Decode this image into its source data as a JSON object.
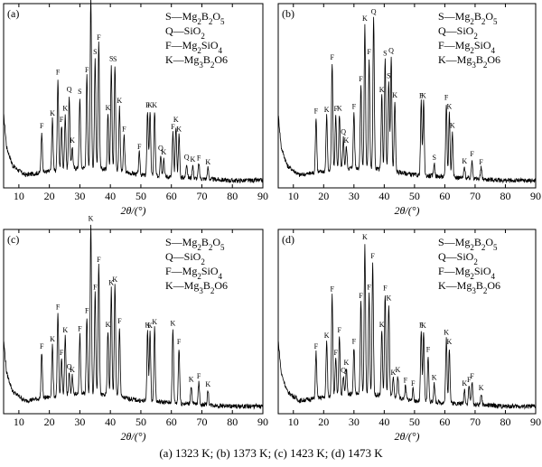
{
  "caption": "(a) 1323 K; (b) 1373 K; (c) 1423 K; (d)  1473 K",
  "chart_data": [
    {
      "type": "line",
      "panel_label": "(a)",
      "xlabel": "2θ/(°)",
      "ylabel": "",
      "xlim": [
        5,
        90
      ],
      "xticks": [
        "10",
        "20",
        "30",
        "40",
        "50",
        "60",
        "70",
        "80",
        "90"
      ],
      "legend": [
        {
          "code": "S",
          "phase": "Mg₂B₂O₅"
        },
        {
          "code": "Q",
          "phase": "SiO₂"
        },
        {
          "code": "F",
          "phase": "Mg₂SiO₄"
        },
        {
          "code": "K",
          "phase": "Mg₃B₂O6"
        }
      ],
      "legend_position": "top-right",
      "baseline": [
        [
          5,
          0.4
        ],
        [
          6,
          0.22
        ],
        [
          8,
          0.12
        ],
        [
          12,
          0.07
        ],
        [
          20,
          0.09
        ],
        [
          30,
          0.11
        ],
        [
          40,
          0.1
        ],
        [
          50,
          0.07
        ],
        [
          60,
          0.06
        ],
        [
          70,
          0.05
        ],
        [
          80,
          0.04
        ],
        [
          90,
          0.04
        ]
      ],
      "peaks": [
        {
          "x": 17.5,
          "h": 0.22,
          "label": "F"
        },
        {
          "x": 21.0,
          "h": 0.28,
          "label": "K"
        },
        {
          "x": 22.8,
          "h": 0.5,
          "label": "F"
        },
        {
          "x": 24.0,
          "h": 0.24,
          "label": "F"
        },
        {
          "x": 25.2,
          "h": 0.3,
          "label": "K"
        },
        {
          "x": 26.5,
          "h": 0.4,
          "label": "Q"
        },
        {
          "x": 27.5,
          "h": 0.12,
          "label": "K"
        },
        {
          "x": 30.0,
          "h": 0.38,
          "label": "S"
        },
        {
          "x": 32.3,
          "h": 0.5,
          "label": "F"
        },
        {
          "x": 33.6,
          "h": 0.92,
          "label": "K"
        },
        {
          "x": 35.0,
          "h": 0.6,
          "label": "S"
        },
        {
          "x": 36.2,
          "h": 0.68,
          "label": "F"
        },
        {
          "x": 39.2,
          "h": 0.3,
          "label": "K"
        },
        {
          "x": 40.3,
          "h": 0.57,
          "label": "S"
        },
        {
          "x": 41.5,
          "h": 0.57,
          "label": "S"
        },
        {
          "x": 43.0,
          "h": 0.35,
          "label": "K"
        },
        {
          "x": 44.5,
          "h": 0.2,
          "label": "F"
        },
        {
          "x": 49.5,
          "h": 0.12,
          "label": "F"
        },
        {
          "x": 52.2,
          "h": 0.35,
          "label": "F"
        },
        {
          "x": 53.0,
          "h": 0.35,
          "label": "K"
        },
        {
          "x": 54.5,
          "h": 0.35,
          "label": "K"
        },
        {
          "x": 56.5,
          "h": 0.12,
          "label": "Q"
        },
        {
          "x": 57.5,
          "h": 0.1,
          "label": "K"
        },
        {
          "x": 60.5,
          "h": 0.24,
          "label": "F"
        },
        {
          "x": 61.5,
          "h": 0.28,
          "label": "K"
        },
        {
          "x": 62.5,
          "h": 0.23,
          "label": "K"
        },
        {
          "x": 65.0,
          "h": 0.08,
          "label": "Q"
        },
        {
          "x": 67.0,
          "h": 0.07,
          "label": "K"
        },
        {
          "x": 69.0,
          "h": 0.08,
          "label": "F"
        },
        {
          "x": 72.0,
          "h": 0.06,
          "label": "K"
        }
      ]
    },
    {
      "type": "line",
      "panel_label": "(b)",
      "xlabel": "2θ/(°)",
      "ylabel": "",
      "xlim": [
        5,
        90
      ],
      "xticks": [
        "10",
        "20",
        "30",
        "40",
        "50",
        "60",
        "70",
        "80",
        "90"
      ],
      "legend": [
        {
          "code": "S",
          "phase": "Mg₂B₂O₅"
        },
        {
          "code": "Q",
          "phase": "SiO₂"
        },
        {
          "code": "F",
          "phase": "Mg₂SiO₄"
        },
        {
          "code": "K",
          "phase": "Mg₃B₂O6"
        }
      ],
      "legend_position": "top-right",
      "baseline": [
        [
          5,
          0.4
        ],
        [
          6,
          0.22
        ],
        [
          8,
          0.12
        ],
        [
          12,
          0.07
        ],
        [
          20,
          0.09
        ],
        [
          30,
          0.11
        ],
        [
          40,
          0.1
        ],
        [
          50,
          0.07
        ],
        [
          60,
          0.06
        ],
        [
          70,
          0.05
        ],
        [
          80,
          0.04
        ],
        [
          90,
          0.04
        ]
      ],
      "peaks": [
        {
          "x": 17.5,
          "h": 0.3,
          "label": "F"
        },
        {
          "x": 21.0,
          "h": 0.3,
          "label": "K"
        },
        {
          "x": 22.8,
          "h": 0.58,
          "label": "F"
        },
        {
          "x": 24.0,
          "h": 0.3,
          "label": "F"
        },
        {
          "x": 25.2,
          "h": 0.3,
          "label": "K"
        },
        {
          "x": 26.5,
          "h": 0.17,
          "label": "Q"
        },
        {
          "x": 27.5,
          "h": 0.12,
          "label": "K"
        },
        {
          "x": 30.0,
          "h": 0.3,
          "label": "F"
        },
        {
          "x": 32.3,
          "h": 0.45,
          "label": "F"
        },
        {
          "x": 33.6,
          "h": 0.78,
          "label": "K"
        },
        {
          "x": 35.0,
          "h": 0.6,
          "label": "F"
        },
        {
          "x": 36.5,
          "h": 0.82,
          "label": "Q"
        },
        {
          "x": 39.2,
          "h": 0.4,
          "label": "K"
        },
        {
          "x": 40.3,
          "h": 0.6,
          "label": "S"
        },
        {
          "x": 41.5,
          "h": 0.48,
          "label": "S"
        },
        {
          "x": 42.3,
          "h": 0.62,
          "label": "Q"
        },
        {
          "x": 43.5,
          "h": 0.38,
          "label": "K"
        },
        {
          "x": 52.2,
          "h": 0.4,
          "label": "F"
        },
        {
          "x": 53.0,
          "h": 0.4,
          "label": "K"
        },
        {
          "x": 56.5,
          "h": 0.07,
          "label": "S"
        },
        {
          "x": 60.5,
          "h": 0.4,
          "label": "F"
        },
        {
          "x": 61.5,
          "h": 0.35,
          "label": "K"
        },
        {
          "x": 62.5,
          "h": 0.25,
          "label": "K"
        },
        {
          "x": 66.5,
          "h": 0.06,
          "label": "K"
        },
        {
          "x": 69.0,
          "h": 0.1,
          "label": "F"
        },
        {
          "x": 72.0,
          "h": 0.06,
          "label": "F"
        }
      ]
    },
    {
      "type": "line",
      "panel_label": "(c)",
      "xlabel": "2θ/(°)",
      "ylabel": "",
      "xlim": [
        5,
        90
      ],
      "xticks": [
        "10",
        "20",
        "30",
        "40",
        "50",
        "60",
        "70",
        "80",
        "90"
      ],
      "legend": [
        {
          "code": "S",
          "phase": "Mg₂B₂O₅"
        },
        {
          "code": "Q",
          "phase": "SiO₂"
        },
        {
          "code": "F",
          "phase": "Mg₂SiO₄"
        },
        {
          "code": "K",
          "phase": "Mg₃B₂O6"
        }
      ],
      "legend_position": "top-right",
      "baseline": [
        [
          5,
          0.4
        ],
        [
          6,
          0.22
        ],
        [
          8,
          0.12
        ],
        [
          12,
          0.07
        ],
        [
          20,
          0.09
        ],
        [
          30,
          0.11
        ],
        [
          40,
          0.1
        ],
        [
          50,
          0.07
        ],
        [
          60,
          0.06
        ],
        [
          70,
          0.05
        ],
        [
          80,
          0.04
        ],
        [
          90,
          0.04
        ]
      ],
      "peaks": [
        {
          "x": 17.5,
          "h": 0.25,
          "label": "F"
        },
        {
          "x": 21.0,
          "h": 0.28,
          "label": "K"
        },
        {
          "x": 22.8,
          "h": 0.45,
          "label": "F"
        },
        {
          "x": 24.0,
          "h": 0.2,
          "label": "F"
        },
        {
          "x": 25.2,
          "h": 0.32,
          "label": "K"
        },
        {
          "x": 26.5,
          "h": 0.12,
          "label": "Q"
        },
        {
          "x": 27.5,
          "h": 0.1,
          "label": "K"
        },
        {
          "x": 30.0,
          "h": 0.32,
          "label": "F"
        },
        {
          "x": 32.3,
          "h": 0.42,
          "label": "F"
        },
        {
          "x": 33.6,
          "h": 0.92,
          "label": "K"
        },
        {
          "x": 35.0,
          "h": 0.55,
          "label": "F"
        },
        {
          "x": 36.2,
          "h": 0.7,
          "label": "F"
        },
        {
          "x": 39.2,
          "h": 0.35,
          "label": "K"
        },
        {
          "x": 40.3,
          "h": 0.58,
          "label": "K"
        },
        {
          "x": 41.5,
          "h": 0.6,
          "label": "K"
        },
        {
          "x": 43.0,
          "h": 0.38,
          "label": "F"
        },
        {
          "x": 52.2,
          "h": 0.38,
          "label": "K"
        },
        {
          "x": 53.0,
          "h": 0.38,
          "label": "K"
        },
        {
          "x": 54.5,
          "h": 0.4,
          "label": "K"
        },
        {
          "x": 60.5,
          "h": 0.4,
          "label": "K"
        },
        {
          "x": 62.5,
          "h": 0.3,
          "label": "F"
        },
        {
          "x": 66.5,
          "h": 0.1,
          "label": "K"
        },
        {
          "x": 69.0,
          "h": 0.12,
          "label": "F"
        },
        {
          "x": 72.0,
          "h": 0.08,
          "label": "K"
        }
      ]
    },
    {
      "type": "line",
      "panel_label": "(d)",
      "xlabel": "2θ/(°)",
      "ylabel": "",
      "xlim": [
        5,
        90
      ],
      "xticks": [
        "10",
        "20",
        "30",
        "40",
        "50",
        "60",
        "70",
        "80",
        "90"
      ],
      "legend": [
        {
          "code": "S",
          "phase": "Mg₂B₂O₅"
        },
        {
          "code": "Q",
          "phase": "SiO₂"
        },
        {
          "code": "F",
          "phase": "Mg₂SiO₄"
        },
        {
          "code": "K",
          "phase": "Mg₃B₂O6"
        }
      ],
      "legend_position": "top-right",
      "baseline": [
        [
          5,
          0.4
        ],
        [
          6,
          0.22
        ],
        [
          8,
          0.12
        ],
        [
          12,
          0.07
        ],
        [
          20,
          0.09
        ],
        [
          30,
          0.11
        ],
        [
          40,
          0.1
        ],
        [
          50,
          0.07
        ],
        [
          60,
          0.06
        ],
        [
          70,
          0.05
        ],
        [
          80,
          0.04
        ],
        [
          90,
          0.04
        ]
      ],
      "peaks": [
        {
          "x": 17.5,
          "h": 0.25,
          "label": "F"
        },
        {
          "x": 21.0,
          "h": 0.3,
          "label": "K"
        },
        {
          "x": 22.8,
          "h": 0.55,
          "label": "F"
        },
        {
          "x": 24.0,
          "h": 0.2,
          "label": "F"
        },
        {
          "x": 25.2,
          "h": 0.32,
          "label": "F"
        },
        {
          "x": 26.5,
          "h": 0.1,
          "label": "Q"
        },
        {
          "x": 27.5,
          "h": 0.14,
          "label": "K"
        },
        {
          "x": 30.0,
          "h": 0.25,
          "label": "F"
        },
        {
          "x": 32.3,
          "h": 0.5,
          "label": "F"
        },
        {
          "x": 33.6,
          "h": 0.82,
          "label": "K"
        },
        {
          "x": 35.0,
          "h": 0.55,
          "label": "F"
        },
        {
          "x": 36.2,
          "h": 0.72,
          "label": "F"
        },
        {
          "x": 39.2,
          "h": 0.35,
          "label": "K"
        },
        {
          "x": 40.3,
          "h": 0.55,
          "label": "F"
        },
        {
          "x": 41.5,
          "h": 0.5,
          "label": "K"
        },
        {
          "x": 43.0,
          "h": 0.1,
          "label": "K"
        },
        {
          "x": 44.5,
          "h": 0.12,
          "label": "K"
        },
        {
          "x": 47.0,
          "h": 0.07,
          "label": "F"
        },
        {
          "x": 49.5,
          "h": 0.06,
          "label": "F"
        },
        {
          "x": 52.2,
          "h": 0.38,
          "label": "F"
        },
        {
          "x": 53.0,
          "h": 0.38,
          "label": "K"
        },
        {
          "x": 54.5,
          "h": 0.25,
          "label": "F"
        },
        {
          "x": 56.5,
          "h": 0.1,
          "label": "K"
        },
        {
          "x": 60.5,
          "h": 0.35,
          "label": "K"
        },
        {
          "x": 61.5,
          "h": 0.3,
          "label": "K"
        },
        {
          "x": 66.5,
          "h": 0.08,
          "label": "K"
        },
        {
          "x": 68.0,
          "h": 0.1,
          "label": "F"
        },
        {
          "x": 69.0,
          "h": 0.12,
          "label": "F"
        },
        {
          "x": 72.0,
          "h": 0.06,
          "label": "K"
        }
      ]
    }
  ]
}
